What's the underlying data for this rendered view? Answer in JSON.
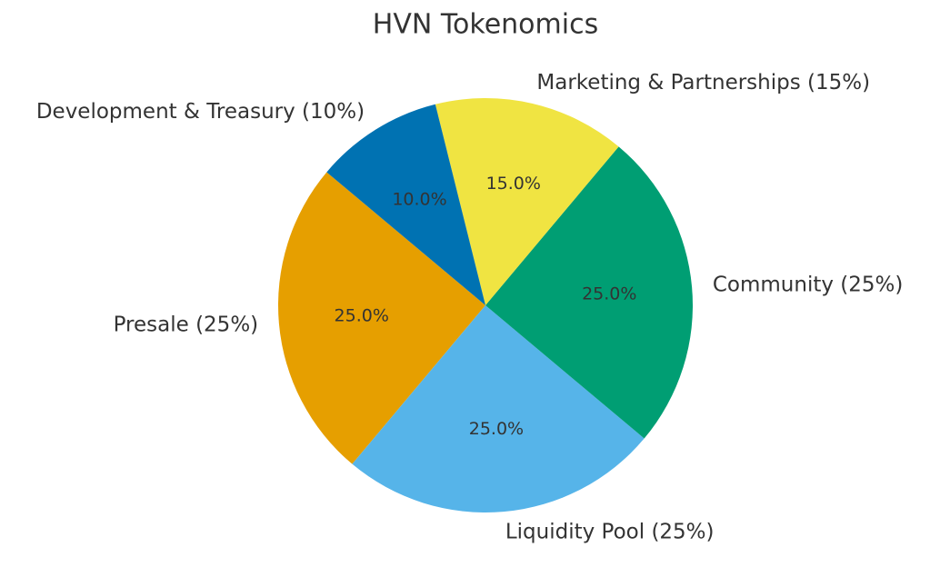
{
  "chart_data": {
    "type": "pie",
    "title": "HVN Tokenomics",
    "categories": [
      "Presale (25%)",
      "Liquidity Pool (25%)",
      "Community (25%)",
      "Marketing & Partnerships (15%)",
      "Development & Treasury (10%)"
    ],
    "values": [
      25,
      25,
      25,
      15,
      10
    ],
    "value_labels": [
      "25.0%",
      "25.0%",
      "25.0%",
      "15.0%",
      "10.0%"
    ],
    "colors": [
      "#E69F00",
      "#56B4E9",
      "#009E73",
      "#F0E442",
      "#0072B2"
    ]
  }
}
